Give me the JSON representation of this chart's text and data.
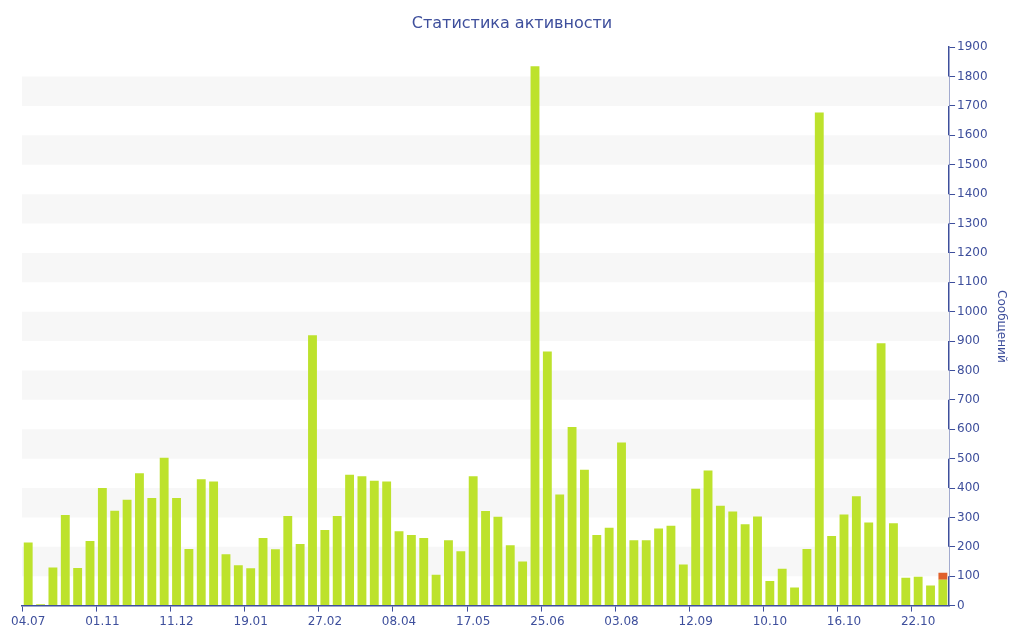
{
  "chart_data": {
    "type": "bar",
    "title": "Статистика активности",
    "ylabel": "Сообщений",
    "categories": [
      "04.07",
      null,
      null,
      null,
      null,
      null,
      "01.11",
      null,
      null,
      null,
      null,
      null,
      "11.12",
      null,
      null,
      null,
      null,
      null,
      "19.01",
      null,
      null,
      null,
      null,
      null,
      "27.02",
      null,
      null,
      null,
      null,
      null,
      "08.04",
      null,
      null,
      null,
      null,
      null,
      "17.05",
      null,
      null,
      null,
      null,
      null,
      "25.06",
      null,
      null,
      null,
      null,
      null,
      "03.08",
      null,
      null,
      null,
      null,
      null,
      "12.09",
      null,
      null,
      null,
      null,
      null,
      "10.10",
      null,
      null,
      null,
      null,
      null,
      "16.10",
      null,
      null,
      null,
      null,
      null,
      "22.10",
      null,
      null
    ],
    "stacked": true,
    "series": [
      {
        "color": "#bde22c",
        "values": [
          215,
          5,
          130,
          308,
          128,
          220,
          400,
          323,
          360,
          450,
          366,
          503,
          366,
          193,
          430,
          422,
          175,
          137,
          127,
          230,
          192,
          305,
          210,
          920,
          257,
          305,
          445,
          440,
          425,
          422,
          253,
          240,
          230,
          105,
          222,
          185,
          440,
          322,
          302,
          205,
          150,
          1835,
          865,
          378,
          608,
          462,
          240,
          265,
          555,
          222,
          222,
          262,
          272,
          140,
          398,
          460,
          340,
          320,
          277,
          303,
          84,
          125,
          62,
          193,
          1678,
          237,
          310,
          372,
          283,
          893,
          280,
          95,
          98,
          68,
          88
        ]
      },
      {
        "color": "#e0602b",
        "values": [
          null,
          null,
          null,
          null,
          null,
          null,
          null,
          null,
          null,
          null,
          null,
          null,
          null,
          null,
          null,
          null,
          null,
          null,
          null,
          null,
          null,
          null,
          null,
          null,
          null,
          null,
          null,
          null,
          null,
          null,
          null,
          null,
          null,
          null,
          null,
          null,
          null,
          null,
          null,
          null,
          null,
          null,
          null,
          null,
          null,
          null,
          null,
          null,
          null,
          null,
          null,
          null,
          null,
          null,
          null,
          null,
          null,
          null,
          null,
          null,
          null,
          null,
          null,
          null,
          null,
          null,
          null,
          null,
          null,
          null,
          null,
          null,
          null,
          null,
          24
        ]
      }
    ],
    "ylim": [
      0,
      1900
    ],
    "yticks": [
      0,
      100,
      200,
      300,
      400,
      500,
      600,
      700,
      800,
      900,
      1000,
      1100,
      1200,
      1300,
      1400,
      1500,
      1600,
      1700,
      1800,
      1900
    ],
    "legend": false
  }
}
